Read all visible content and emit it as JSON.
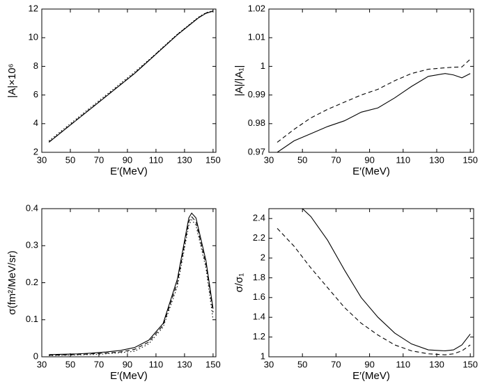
{
  "chart_data": [
    {
      "type": "line",
      "ylabel": "|A|×10⁶",
      "xlabel": "E′(MeV)",
      "x": [
        35,
        45,
        55,
        65,
        75,
        85,
        95,
        105,
        115,
        125,
        135,
        140,
        145,
        150
      ],
      "xlim": [
        30,
        152
      ],
      "xticks": [
        30,
        50,
        70,
        90,
        110,
        130,
        150
      ],
      "ylim": [
        2,
        12
      ],
      "yticks": [
        2,
        4,
        6,
        8,
        10,
        12
      ],
      "series": [
        {
          "color": "#000000",
          "dash": "solid",
          "values": [
            2.7,
            3.5,
            4.3,
            5.1,
            5.9,
            6.7,
            7.5,
            8.4,
            9.3,
            10.2,
            11.0,
            11.4,
            11.7,
            11.85
          ]
        },
        {
          "color": "#000000",
          "dash": "dashed",
          "values": [
            2.72,
            3.52,
            4.32,
            5.12,
            5.92,
            6.72,
            7.52,
            8.42,
            9.32,
            10.22,
            11.02,
            11.42,
            11.72,
            11.87
          ]
        },
        {
          "color": "#000000",
          "dash": "dotted",
          "values": [
            2.8,
            3.6,
            4.4,
            5.2,
            6.0,
            6.8,
            7.6,
            8.45,
            9.35,
            10.25,
            11.05,
            11.45,
            11.74,
            11.9
          ]
        }
      ]
    },
    {
      "type": "line",
      "ylabel": "|A|/|A₁|",
      "xlabel": "E′(MeV)",
      "x": [
        35,
        45,
        55,
        65,
        75,
        85,
        95,
        105,
        115,
        125,
        135,
        140,
        145,
        150
      ],
      "xlim": [
        30,
        152
      ],
      "xticks": [
        30,
        50,
        70,
        90,
        110,
        130,
        150
      ],
      "ylim": [
        0.97,
        1.02
      ],
      "yticks": [
        0.97,
        0.98,
        0.99,
        1,
        1.01,
        1.02
      ],
      "series": [
        {
          "color": "#000000",
          "dash": "solid",
          "values": [
            0.97,
            0.974,
            0.9765,
            0.979,
            0.981,
            0.984,
            0.9855,
            0.989,
            0.993,
            0.9965,
            0.9975,
            0.997,
            0.996,
            0.9975
          ]
        },
        {
          "color": "#000000",
          "dash": "dashed",
          "values": [
            0.9735,
            0.978,
            0.982,
            0.985,
            0.9875,
            0.99,
            0.992,
            0.995,
            0.9975,
            0.999,
            0.9995,
            0.9997,
            0.9998,
            1.0025
          ]
        }
      ]
    },
    {
      "type": "line",
      "ylabel": "σ(fm²/MeV/sr)",
      "xlabel": "E′(MeV)",
      "x": [
        35,
        45,
        55,
        65,
        75,
        85,
        95,
        105,
        115,
        125,
        133,
        135,
        138,
        145,
        150
      ],
      "xlim": [
        30,
        152
      ],
      "xticks": [
        30,
        50,
        70,
        90,
        110,
        130,
        150
      ],
      "ylim": [
        0,
        0.4
      ],
      "yticks": [
        0,
        0.1,
        0.2,
        0.3,
        0.4
      ],
      "series": [
        {
          "color": "#000000",
          "dash": "solid",
          "values": [
            0.006,
            0.007,
            0.008,
            0.01,
            0.013,
            0.017,
            0.025,
            0.045,
            0.09,
            0.21,
            0.375,
            0.388,
            0.375,
            0.26,
            0.13
          ]
        },
        {
          "color": "#000000",
          "dash": "dashed",
          "values": [
            0.004,
            0.005,
            0.006,
            0.008,
            0.01,
            0.013,
            0.02,
            0.04,
            0.085,
            0.2,
            0.365,
            0.378,
            0.365,
            0.25,
            0.12
          ]
        },
        {
          "color": "#000000",
          "dash": "dotted",
          "values": [
            0.003,
            0.004,
            0.005,
            0.006,
            0.008,
            0.011,
            0.015,
            0.035,
            0.08,
            0.19,
            0.355,
            0.37,
            0.355,
            0.24,
            0.1
          ]
        }
      ]
    },
    {
      "type": "line",
      "ylabel": "σ/σ₁",
      "xlabel": "E′(MeV)",
      "x": [
        35,
        45,
        50,
        55,
        65,
        75,
        85,
        95,
        105,
        115,
        125,
        135,
        140,
        145,
        150
      ],
      "xlim": [
        30,
        152
      ],
      "xticks": [
        30,
        50,
        70,
        90,
        110,
        130,
        150
      ],
      "ylim": [
        1,
        2.5
      ],
      "yticks": [
        1,
        1.2,
        1.4,
        1.6,
        1.8,
        2,
        2.2,
        2.4
      ],
      "series": [
        {
          "color": "#000000",
          "dash": "solid",
          "values": [
            null,
            null,
            2.5,
            2.42,
            2.18,
            1.88,
            1.6,
            1.4,
            1.24,
            1.13,
            1.07,
            1.06,
            1.07,
            1.12,
            1.23
          ]
        },
        {
          "color": "#000000",
          "dash": "dashed",
          "values": [
            2.3,
            2.12,
            2.01,
            1.9,
            1.7,
            1.5,
            1.34,
            1.22,
            1.12,
            1.06,
            1.03,
            1.02,
            1.03,
            1.06,
            1.12
          ]
        }
      ]
    }
  ]
}
